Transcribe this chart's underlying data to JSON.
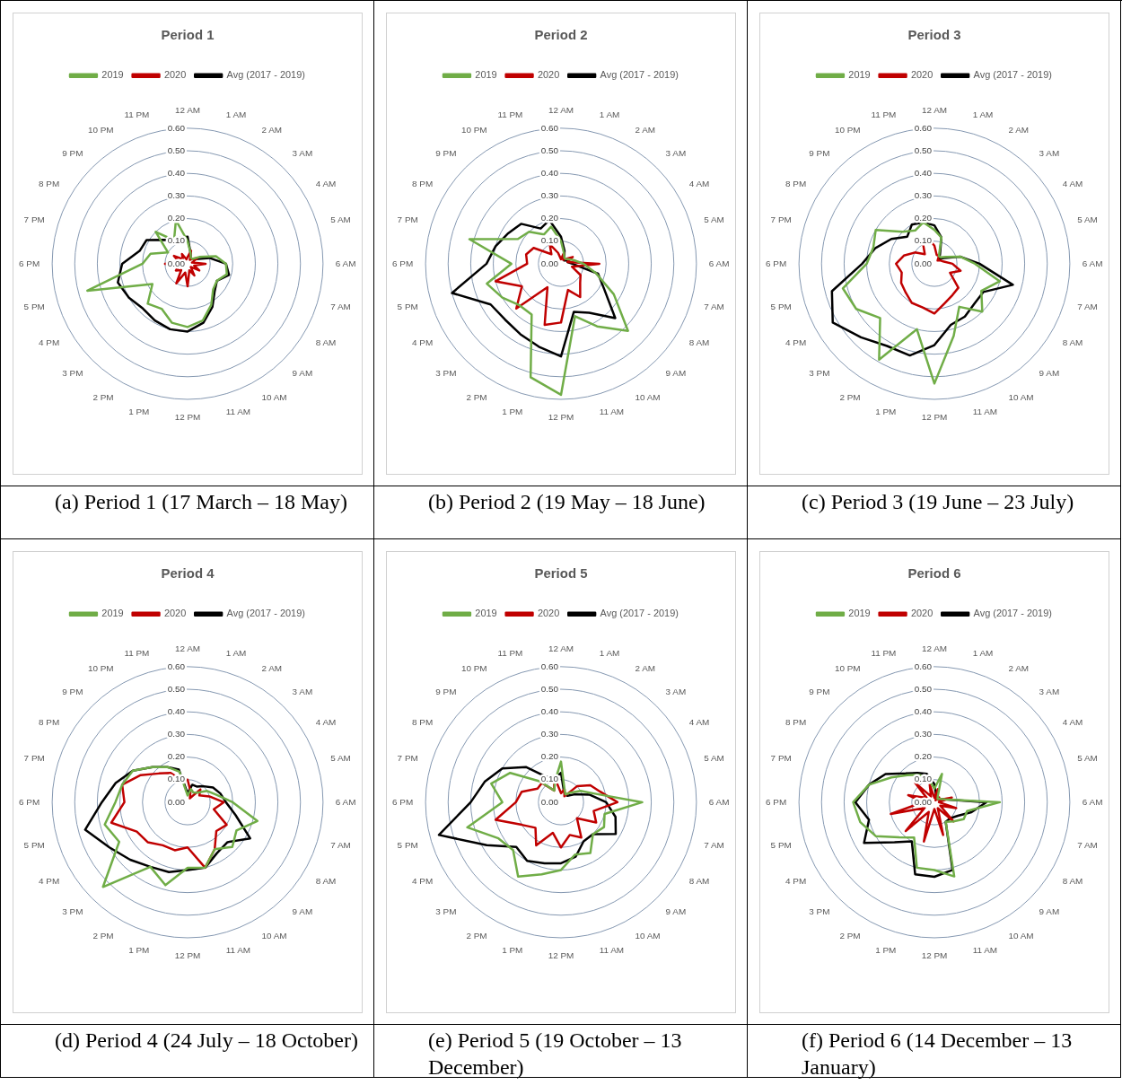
{
  "chart_data": [
    {
      "type": "radar",
      "title": "Period 1",
      "categories": [
        "12 AM",
        "1 AM",
        "2 AM",
        "3 AM",
        "4 AM",
        "5 AM",
        "6 AM",
        "7 AM",
        "8 AM",
        "9 AM",
        "10 AM",
        "11 AM",
        "12 PM",
        "1 PM",
        "2 PM",
        "3 PM",
        "4 PM",
        "5 PM",
        "6 PM",
        "7 PM",
        "8 PM",
        "9 PM",
        "10 PM",
        "11 PM"
      ],
      "ylim": [
        0,
        0.6
      ],
      "yticks": [
        {
          "value": 0,
          "label": "0.00"
        },
        {
          "value": 0.1,
          "label": "0.10"
        },
        {
          "value": 0.2,
          "label": "0.20"
        },
        {
          "value": 0.3,
          "label": "0.30"
        },
        {
          "value": 0.4,
          "label": "0.40"
        },
        {
          "value": 0.5,
          "label": "0.50"
        },
        {
          "value": 0.6,
          "label": "0.60"
        }
      ],
      "grid": true,
      "legend": "top",
      "marker": "none",
      "annotations": [
        "(a) Period 1 (17 March – 18 May)"
      ],
      "series": [
        {
          "name": "2019",
          "color": "#70ad47",
          "values": [
            0.1,
            0.05,
            0.03,
            0.03,
            0.06,
            0.13,
            0.17,
            0.18,
            0.15,
            0.16,
            0.21,
            0.26,
            0.28,
            0.27,
            0.23,
            0.25,
            0.18,
            0.46,
            0.2,
            0.17,
            0.1,
            0.2,
            0.12,
            0.2
          ]
        },
        {
          "name": "2020",
          "color": "#c00000",
          "values": [
            0.03,
            0.06,
            0.02,
            0.03,
            0.05,
            0.02,
            0.08,
            0.03,
            0.06,
            0.02,
            0.06,
            0.03,
            0.1,
            0.04,
            0.1,
            0.04,
            0.06,
            0.04,
            0.1,
            0.04,
            0.07,
            0.03,
            0.05,
            0.02
          ]
        },
        {
          "name": "Avg (2017 - 2019)",
          "color": "#000000",
          "values": [
            0.12,
            0.05,
            0.03,
            0.03,
            0.04,
            0.1,
            0.17,
            0.19,
            0.15,
            0.17,
            0.22,
            0.27,
            0.3,
            0.3,
            0.29,
            0.28,
            0.3,
            0.32,
            0.29,
            0.22,
            0.21,
            0.15,
            0.12,
            0.12
          ]
        }
      ]
    },
    {
      "type": "radar",
      "title": "Period 2",
      "categories": [
        "12 AM",
        "1 AM",
        "2 AM",
        "3 AM",
        "4 AM",
        "5 AM",
        "6 AM",
        "7 AM",
        "8 AM",
        "9 AM",
        "10 AM",
        "11 AM",
        "12 PM",
        "1 PM",
        "2 PM",
        "3 PM",
        "4 PM",
        "5 PM",
        "6 PM",
        "7 PM",
        "8 PM",
        "9 PM",
        "10 PM",
        "11 PM"
      ],
      "ylim": [
        0,
        0.6
      ],
      "yticks": [
        {
          "value": 0,
          "label": "0.00"
        },
        {
          "value": 0.1,
          "label": "0.10"
        },
        {
          "value": 0.2,
          "label": "0.20"
        },
        {
          "value": 0.3,
          "label": "0.30"
        },
        {
          "value": 0.4,
          "label": "0.40"
        },
        {
          "value": 0.5,
          "label": "0.50"
        },
        {
          "value": 0.6,
          "label": "0.60"
        }
      ],
      "grid": true,
      "legend": "top",
      "marker": "none",
      "annotations": [
        "(b) Period 2 (19 May – 18 June)"
      ],
      "series": [
        {
          "name": "2019",
          "color": "#70ad47",
          "values": [
            0.1,
            0.05,
            0.03,
            0.03,
            0.04,
            0.06,
            0.1,
            0.16,
            0.27,
            0.42,
            0.32,
            0.24,
            0.58,
            0.52,
            0.26,
            0.26,
            0.3,
            0.34,
            0.22,
            0.42,
            0.22,
            0.2,
            0.15,
            0.17
          ]
        },
        {
          "name": "2020",
          "color": "#c00000",
          "values": [
            0.02,
            0.05,
            0.02,
            0.03,
            0.06,
            0.03,
            0.17,
            0.05,
            0.1,
            0.12,
            0.17,
            0.12,
            0.26,
            0.28,
            0.12,
            0.28,
            0.2,
            0.3,
            0.15,
            0.16,
            0.14,
            0.06,
            0.1,
            0.05
          ]
        },
        {
          "name": "Avg (2017 - 2019)",
          "color": "#000000",
          "values": [
            0.12,
            0.06,
            0.03,
            0.02,
            0.03,
            0.03,
            0.05,
            0.17,
            0.22,
            0.34,
            0.25,
            0.22,
            0.41,
            0.38,
            0.36,
            0.35,
            0.36,
            0.5,
            0.33,
            0.3,
            0.27,
            0.25,
            0.18,
            0.2
          ]
        }
      ]
    },
    {
      "type": "radar",
      "title": "Period 3",
      "categories": [
        "12 AM",
        "1 AM",
        "2 AM",
        "3 AM",
        "4 AM",
        "5 AM",
        "6 AM",
        "7 AM",
        "8 AM",
        "9 AM",
        "10 AM",
        "11 AM",
        "12 PM",
        "1 PM",
        "2 PM",
        "3 PM",
        "4 PM",
        "5 PM",
        "6 PM",
        "7 PM",
        "8 PM",
        "9 PM",
        "10 PM",
        "11 PM"
      ],
      "ylim": [
        0,
        0.6
      ],
      "yticks": [
        {
          "value": 0,
          "label": "0.00"
        },
        {
          "value": 0.1,
          "label": "0.10"
        },
        {
          "value": 0.2,
          "label": "0.20"
        },
        {
          "value": 0.3,
          "label": "0.30"
        },
        {
          "value": 0.4,
          "label": "0.40"
        },
        {
          "value": 0.5,
          "label": "0.50"
        },
        {
          "value": 0.6,
          "label": "0.60"
        }
      ],
      "grid": true,
      "legend": "top",
      "marker": "none",
      "annotations": [
        "(c) Period 3 (19 June – 23 July)"
      ],
      "series": [
        {
          "name": "2019",
          "color": "#70ad47",
          "values": [
            0.15,
            0.12,
            0.04,
            0.04,
            0.06,
            0.12,
            0.18,
            0.3,
            0.24,
            0.3,
            0.22,
            0.33,
            0.53,
            0.3,
            0.49,
            0.34,
            0.4,
            0.42,
            0.3,
            0.28,
            0.3,
            0.2,
            0.17,
            0.19
          ]
        },
        {
          "name": "2020",
          "color": "#c00000",
          "values": [
            0.08,
            0.04,
            0.04,
            0.02,
            0.03,
            0.04,
            0.08,
            0.12,
            0.08,
            0.15,
            0.16,
            0.18,
            0.22,
            0.2,
            0.2,
            0.18,
            0.17,
            0.15,
            0.17,
            0.14,
            0.1,
            0.06,
            0.1,
            0.12
          ]
        },
        {
          "name": "Avg (2017 - 2019)",
          "color": "#000000",
          "values": [
            0.17,
            0.12,
            0.05,
            0.03,
            0.05,
            0.12,
            0.2,
            0.36,
            0.25,
            0.25,
            0.27,
            0.28,
            0.36,
            0.42,
            0.42,
            0.46,
            0.52,
            0.47,
            0.32,
            0.27,
            0.22,
            0.17,
            0.2,
            0.19
          ]
        }
      ]
    },
    {
      "type": "radar",
      "title": "Period 4",
      "categories": [
        "12 AM",
        "1 AM",
        "2 AM",
        "3 AM",
        "4 AM",
        "5 AM",
        "6 AM",
        "7 AM",
        "8 AM",
        "9 AM",
        "10 AM",
        "11 AM",
        "12 PM",
        "1 PM",
        "2 PM",
        "3 PM",
        "4 PM",
        "5 PM",
        "6 PM",
        "7 PM",
        "8 PM",
        "9 PM",
        "10 PM",
        "11 PM"
      ],
      "ylim": [
        0,
        0.6
      ],
      "yticks": [
        {
          "value": 0,
          "label": "0.00"
        },
        {
          "value": 0.1,
          "label": "0.10"
        },
        {
          "value": 0.2,
          "label": "0.20"
        },
        {
          "value": 0.3,
          "label": "0.30"
        },
        {
          "value": 0.4,
          "label": "0.40"
        },
        {
          "value": 0.5,
          "label": "0.50"
        },
        {
          "value": 0.6,
          "label": "0.60"
        }
      ],
      "grid": true,
      "legend": "top",
      "marker": "none",
      "annotations": [
        "(d) Period 4 (24 July – 18 October)"
      ],
      "series": [
        {
          "name": "2019",
          "color": "#70ad47",
          "values": [
            0.03,
            0.06,
            0.05,
            0.06,
            0.1,
            0.13,
            0.2,
            0.32,
            0.25,
            0.28,
            0.24,
            0.3,
            0.29,
            0.38,
            0.33,
            0.53,
            0.35,
            0.38,
            0.32,
            0.3,
            0.28,
            0.22,
            0.18,
            0.14
          ]
        },
        {
          "name": "2020",
          "color": "#c00000",
          "values": [
            0.1,
            0.05,
            0.02,
            0.08,
            0.06,
            0.1,
            0.16,
            0.12,
            0.2,
            0.18,
            0.24,
            0.3,
            0.2,
            0.22,
            0.22,
            0.25,
            0.26,
            0.35,
            0.28,
            0.3,
            0.24,
            0.18,
            0.15,
            0.1
          ]
        },
        {
          "name": "Avg (2017 - 2019)",
          "color": "#000000",
          "values": [
            0.04,
            0.08,
            0.08,
            0.1,
            0.13,
            0.15,
            0.17,
            0.22,
            0.32,
            0.25,
            0.26,
            0.3,
            0.3,
            0.32,
            0.33,
            0.36,
            0.4,
            0.47,
            0.38,
            0.33,
            0.28,
            0.22,
            0.18,
            0.15
          ]
        }
      ]
    },
    {
      "type": "radar",
      "title": "Period 5",
      "categories": [
        "12 AM",
        "1 AM",
        "2 AM",
        "3 AM",
        "4 AM",
        "5 AM",
        "6 AM",
        "7 AM",
        "8 AM",
        "9 AM",
        "10 AM",
        "11 AM",
        "12 PM",
        "1 PM",
        "2 PM",
        "3 PM",
        "4 PM",
        "5 PM",
        "6 PM",
        "7 PM",
        "8 PM",
        "9 PM",
        "10 PM",
        "11 PM"
      ],
      "ylim": [
        0,
        0.6
      ],
      "yticks": [
        {
          "value": 0,
          "label": "0.00"
        },
        {
          "value": 0.1,
          "label": "0.10"
        },
        {
          "value": 0.2,
          "label": "0.20"
        },
        {
          "value": 0.3,
          "label": "0.30"
        },
        {
          "value": 0.4,
          "label": "0.40"
        },
        {
          "value": 0.5,
          "label": "0.50"
        },
        {
          "value": 0.6,
          "label": "0.60"
        }
      ],
      "grid": true,
      "legend": "top",
      "marker": "none",
      "annotations": [
        "(e) Period 5 (19 October – 13 December)"
      ],
      "series": [
        {
          "name": "2019",
          "color": "#70ad47",
          "values": [
            0.18,
            0.06,
            0.04,
            0.06,
            0.1,
            0.15,
            0.36,
            0.2,
            0.22,
            0.2,
            0.26,
            0.24,
            0.3,
            0.33,
            0.38,
            0.3,
            0.32,
            0.43,
            0.26,
            0.32,
            0.26,
            0.13,
            0.06,
            0.1
          ]
        },
        {
          "name": "2020",
          "color": "#c00000",
          "values": [
            0.04,
            0.06,
            0.03,
            0.1,
            0.15,
            0.18,
            0.25,
            0.15,
            0.18,
            0.1,
            0.18,
            0.15,
            0.2,
            0.14,
            0.22,
            0.16,
            0.2,
            0.3,
            0.2,
            0.18,
            0.12,
            0.12,
            0.06,
            0.12
          ]
        },
        {
          "name": "Avg (2017 - 2019)",
          "color": "#000000",
          "values": [
            0.13,
            0.05,
            0.04,
            0.04,
            0.07,
            0.13,
            0.2,
            0.25,
            0.28,
            0.2,
            0.2,
            0.25,
            0.27,
            0.28,
            0.3,
            0.28,
            0.38,
            0.56,
            0.4,
            0.35,
            0.3,
            0.22,
            0.13,
            0.11
          ]
        }
      ]
    },
    {
      "type": "radar",
      "title": "Period 6",
      "categories": [
        "12 AM",
        "1 AM",
        "2 AM",
        "3 AM",
        "4 AM",
        "5 AM",
        "6 AM",
        "7 AM",
        "8 AM",
        "9 AM",
        "10 AM",
        "11 AM",
        "12 PM",
        "1 PM",
        "2 PM",
        "3 PM",
        "4 PM",
        "5 PM",
        "6 PM",
        "7 PM",
        "8 PM",
        "9 PM",
        "10 PM",
        "11 PM"
      ],
      "ylim": [
        0,
        0.6
      ],
      "yticks": [
        {
          "value": 0,
          "label": "0.00"
        },
        {
          "value": 0.1,
          "label": "0.10"
        },
        {
          "value": 0.2,
          "label": "0.20"
        },
        {
          "value": 0.3,
          "label": "0.30"
        },
        {
          "value": 0.4,
          "label": "0.40"
        },
        {
          "value": 0.5,
          "label": "0.50"
        },
        {
          "value": 0.6,
          "label": "0.60"
        }
      ],
      "grid": true,
      "legend": "top",
      "marker": "none",
      "annotations": [
        "(f) Period 6 (14 December – 13 January)"
      ],
      "series": [
        {
          "name": "2019",
          "color": "#70ad47",
          "values": [
            0.06,
            0.13,
            0.03,
            0.02,
            0.03,
            0.05,
            0.29,
            0.15,
            0.15,
            0.12,
            0.1,
            0.34,
            0.3,
            0.3,
            0.18,
            0.22,
            0.3,
            0.34,
            0.36,
            0.3,
            0.22,
            0.17,
            0.14,
            0.11
          ]
        },
        {
          "name": "2020",
          "color": "#c00000",
          "values": [
            0.02,
            0.06,
            0.01,
            0.03,
            0.02,
            0.08,
            0.02,
            0.1,
            0.03,
            0.12,
            0.03,
            0.15,
            0.03,
            0.18,
            0.05,
            0.18,
            0.05,
            0.2,
            0.05,
            0.12,
            0.04,
            0.12,
            0.03,
            0.08
          ]
        },
        {
          "name": "Avg (2017 - 2019)",
          "color": "#000000",
          "values": [
            0.08,
            0.03,
            0.02,
            0.02,
            0.03,
            0.05,
            0.23,
            0.17,
            0.12,
            0.1,
            0.1,
            0.31,
            0.33,
            0.33,
            0.2,
            0.25,
            0.36,
            0.3,
            0.35,
            0.3,
            0.25,
            0.18,
            0.15,
            0.13
          ]
        }
      ]
    }
  ]
}
